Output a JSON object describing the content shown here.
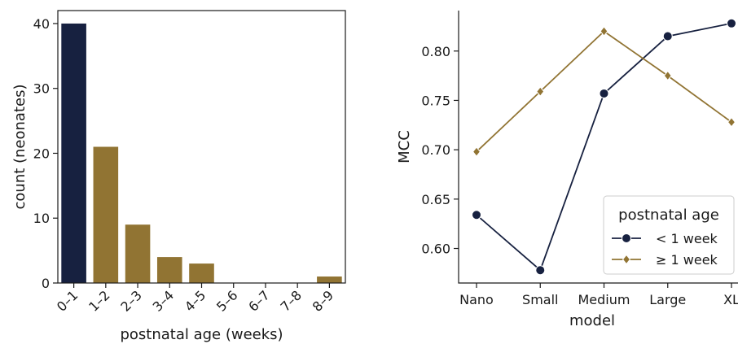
{
  "colors": {
    "young": "#172140",
    "old": "#917433",
    "axis": "#1a1a1a"
  },
  "chart_data": [
    {
      "type": "bar",
      "categories": [
        "0–1",
        "1–2",
        "2–3",
        "3–4",
        "4–5",
        "5–6",
        "6–7",
        "7–8",
        "8–9"
      ],
      "values": [
        40,
        21,
        9,
        4,
        3,
        0,
        0,
        0,
        1
      ],
      "bar_colors": [
        "#172140",
        "#917433",
        "#917433",
        "#917433",
        "#917433",
        "#917433",
        "#917433",
        "#917433",
        "#917433"
      ],
      "yticks": [
        0,
        10,
        20,
        30,
        40
      ],
      "ylim": [
        0,
        42
      ],
      "xlabel": "postnatal age (weeks)",
      "ylabel": "count (neonates)"
    },
    {
      "type": "line",
      "categories": [
        "Nano",
        "Small",
        "Medium",
        "Large",
        "XL"
      ],
      "series": [
        {
          "name": "< 1 week",
          "marker": "circle",
          "color": "#172140",
          "values": [
            0.634,
            0.578,
            0.757,
            0.815,
            0.828
          ]
        },
        {
          "name": "≥ 1 week",
          "marker": "diamond",
          "color": "#917433",
          "values": [
            0.698,
            0.759,
            0.82,
            0.775,
            0.728
          ]
        }
      ],
      "yticks": [
        0.6,
        0.65,
        0.7,
        0.75,
        0.8
      ],
      "ytick_labels": [
        "0.60",
        "0.65",
        "0.70",
        "0.75",
        "0.80"
      ],
      "ylim": [
        0.565,
        0.841
      ],
      "xlabel": "model",
      "ylabel": "MCC",
      "legend": {
        "title": "postnatal age",
        "placement": "lower-right"
      }
    }
  ]
}
